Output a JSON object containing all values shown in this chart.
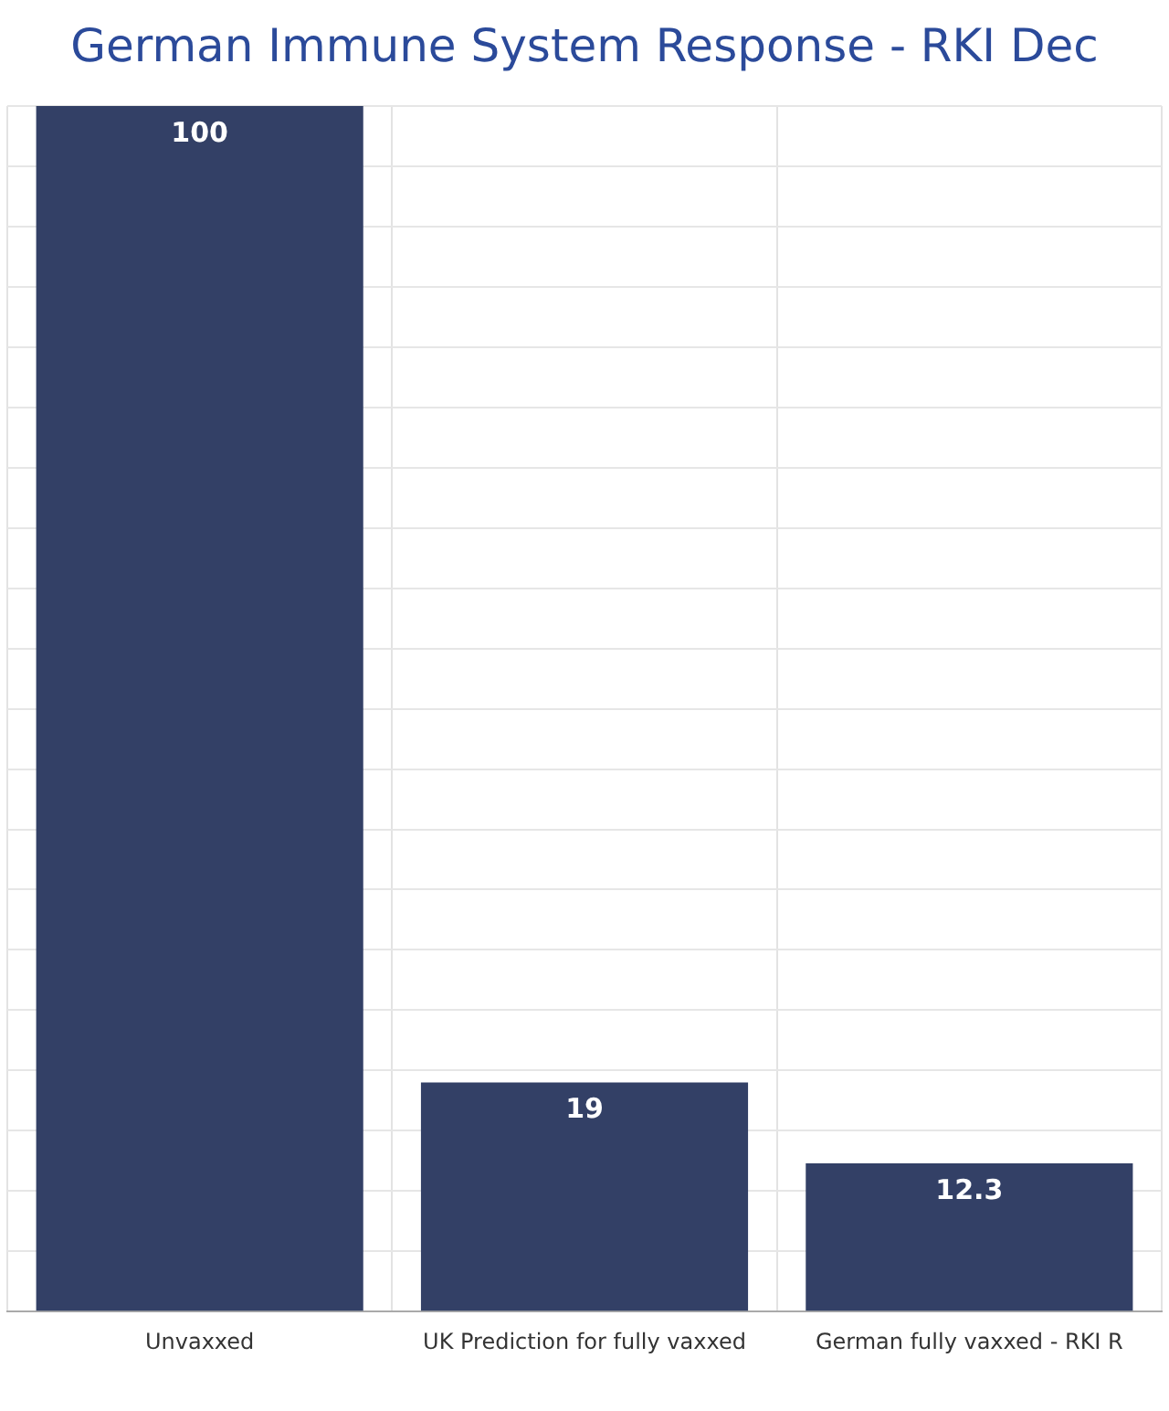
{
  "chart_data": {
    "type": "bar",
    "title": "German Immune System Response - RKI Dec",
    "categories": [
      "Unvaxxed",
      "UK Prediction for fully vaxxed",
      "German fully vaxxed - RKI R"
    ],
    "values": [
      100,
      19,
      12.3
    ],
    "color": "#334066",
    "data_labels": true,
    "grid": true,
    "tick_labels": "x",
    "ylim": [
      0,
      100
    ],
    "yticks": [
      {
        "value": 0,
        "label": null
      },
      {
        "value": 5,
        "label": null
      },
      {
        "value": 10,
        "label": null
      },
      {
        "value": 15,
        "label": null
      },
      {
        "value": 20,
        "label": null
      },
      {
        "value": 25,
        "label": null
      },
      {
        "value": 30,
        "label": null
      },
      {
        "value": 35,
        "label": null
      },
      {
        "value": 40,
        "label": null
      },
      {
        "value": 45,
        "label": null
      },
      {
        "value": 50,
        "label": null
      },
      {
        "value": 55,
        "label": null
      },
      {
        "value": 60,
        "label": null
      },
      {
        "value": 65,
        "label": null
      },
      {
        "value": 70,
        "label": null
      },
      {
        "value": 75,
        "label": null
      },
      {
        "value": 80,
        "label": null
      },
      {
        "value": 85,
        "label": null
      },
      {
        "value": 90,
        "label": null
      },
      {
        "value": 95,
        "label": null
      },
      {
        "value": 100,
        "label": null
      }
    ]
  }
}
